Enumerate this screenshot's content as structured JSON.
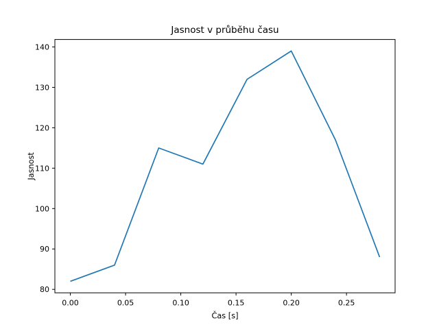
{
  "chart_data": {
    "type": "line",
    "title": "Jasnost v průběhu času",
    "xlabel": "Čas [s]",
    "ylabel": "Jasnost",
    "x": [
      0.0,
      0.04,
      0.08,
      0.12,
      0.16,
      0.2,
      0.24,
      0.28
    ],
    "values": [
      82,
      86,
      115,
      111,
      132,
      139,
      117,
      88
    ],
    "series_name": "Jasnost",
    "xtick_labels": [
      "0.00",
      "0.05",
      "0.10",
      "0.15",
      "0.20",
      "0.25"
    ],
    "ytick_labels": [
      "80",
      "90",
      "100",
      "110",
      "120",
      "130",
      "140"
    ],
    "xlim": [
      -0.014,
      0.294
    ],
    "ylim": [
      79.15,
      141.85
    ],
    "grid": false,
    "legend": false,
    "line_color": "#1f77b4",
    "spine_color": "#000000",
    "background_color": "#ffffff"
  }
}
